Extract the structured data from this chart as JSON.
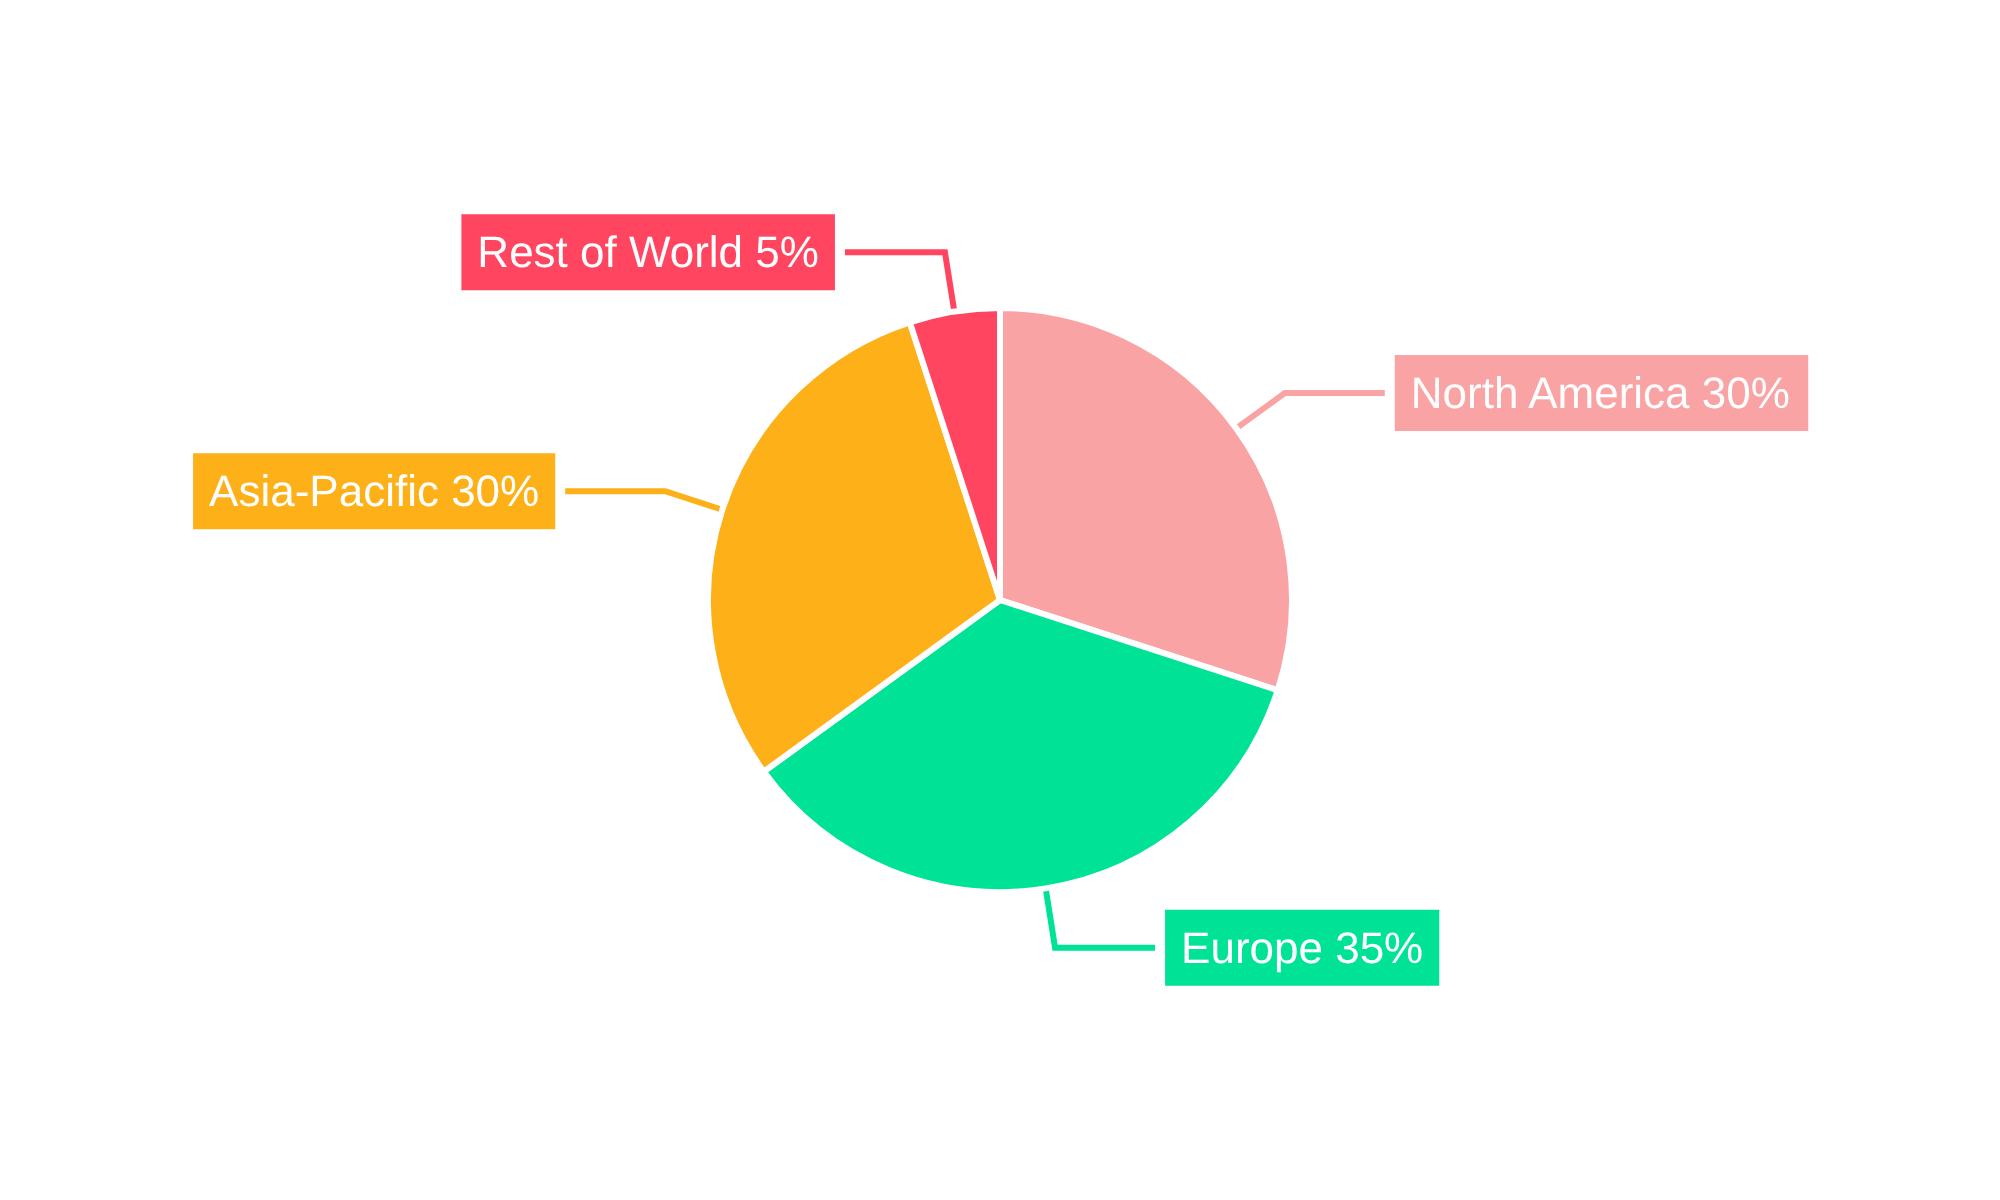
{
  "chart_data": {
    "type": "pie",
    "categories": [
      "North America",
      "Europe",
      "Asia-Pacific",
      "Rest of World"
    ],
    "values": [
      30,
      35,
      30,
      5
    ],
    "colors": [
      "#f9a3a4",
      "#00e396",
      "#feb019",
      "#ff4560"
    ],
    "value_labels": [
      "30%",
      "35%",
      "30%",
      "5%"
    ],
    "legend": false
  }
}
